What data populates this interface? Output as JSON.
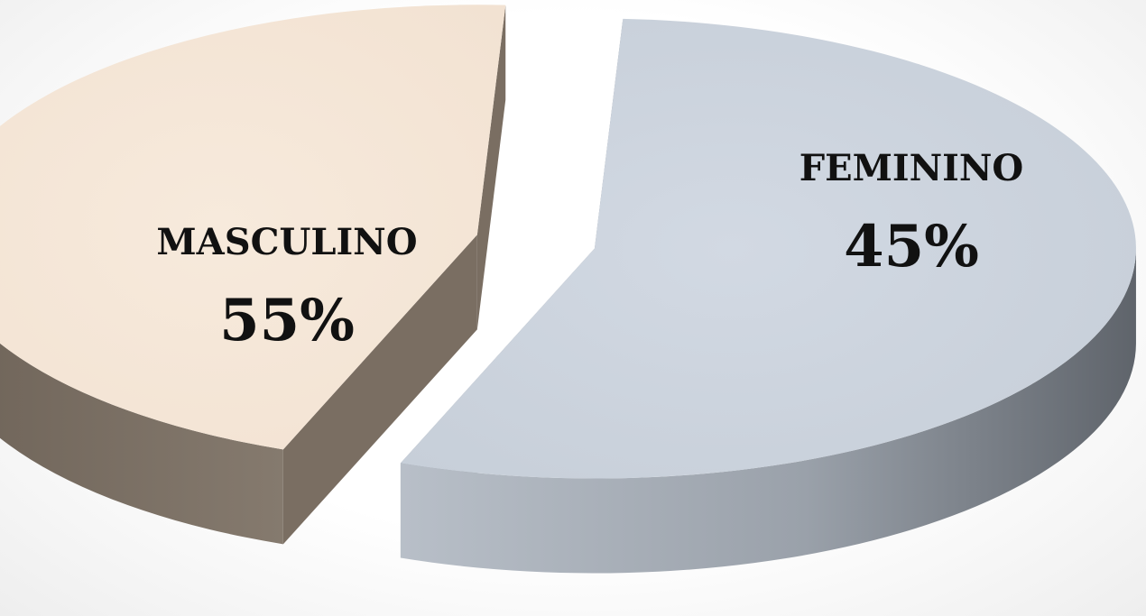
{
  "chart_data": {
    "type": "pie",
    "style": "3d-exploded",
    "slices": [
      {
        "label": "MASCULINO",
        "value": 55,
        "value_label": "55%",
        "color": "#cdd5df",
        "side_color": "#8e949c"
      },
      {
        "label": "FEMININO",
        "value": 45,
        "value_label": "45%",
        "color": "#f5e6d8",
        "side_color": "#7a6e62"
      }
    ]
  }
}
